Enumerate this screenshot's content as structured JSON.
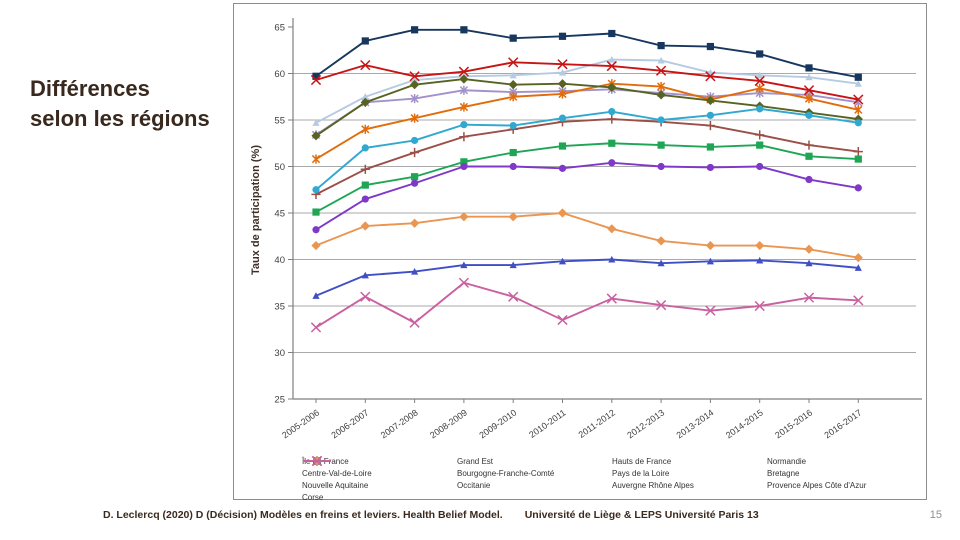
{
  "slide": {
    "title_line1": "Différences",
    "title_line2": "selon les régions",
    "footer_citation": "D. Leclercq (2020) D (Décision) Modèles en freins et leviers. Health Belief Model.",
    "footer_affiliation": "Université de Liège  &  LEPS Université Paris 13",
    "page_number": "15"
  },
  "chart_data": {
    "type": "line",
    "title": "",
    "xlabel": "",
    "ylabel": "Taux de participation (%)",
    "ylim": [
      25,
      65
    ],
    "ytick_step": 5,
    "grid": true,
    "legend_position": "bottom",
    "axis_color": "#7f7f7f",
    "grid_color": "#a9a9a9",
    "categories": [
      "2005-2006",
      "2006-2007",
      "2007-2008",
      "2008-2009",
      "2009-2010",
      "2010-2011",
      "2011-2012",
      "2012-2013",
      "2013-2014",
      "2014-2015",
      "2015-2016",
      "2016-2017"
    ],
    "series": [
      {
        "name": "Île de France",
        "color": "#414fc4",
        "marker": "triangle",
        "values": [
          36.1,
          38.3,
          38.7,
          39.4,
          39.4,
          39.8,
          40.0,
          39.6,
          39.8,
          39.9,
          39.6,
          39.1
        ]
      },
      {
        "name": "Grand Est",
        "color": "#9a4f47",
        "marker": "plus",
        "values": [
          47.0,
          49.7,
          51.5,
          53.2,
          54.0,
          54.8,
          55.1,
          54.8,
          54.4,
          53.4,
          52.3,
          51.6
        ]
      },
      {
        "name": "Hauts de France",
        "color": "#1fa655",
        "marker": "square",
        "values": [
          45.1,
          48.0,
          48.9,
          50.5,
          51.5,
          52.2,
          52.5,
          52.3,
          52.1,
          52.3,
          51.1,
          50.8
        ]
      },
      {
        "name": "Normandie",
        "color": "#a291cb",
        "marker": "asterisk",
        "values": [
          53.4,
          56.9,
          57.3,
          58.2,
          58.0,
          58.1,
          58.3,
          57.9,
          57.5,
          57.9,
          57.7,
          56.9
        ]
      },
      {
        "name": "Centre-Val-de-Loire",
        "color": "#b5cbe2",
        "marker": "triangle",
        "values": [
          54.7,
          57.5,
          59.3,
          59.7,
          59.8,
          60.1,
          61.5,
          61.4,
          60.1,
          59.8,
          59.6,
          58.9
        ]
      },
      {
        "name": "Bourgogne-Franche-Comté",
        "color": "#e36c0a",
        "marker": "asterisk",
        "values": [
          50.8,
          54.0,
          55.2,
          56.4,
          57.5,
          57.8,
          58.9,
          58.6,
          57.2,
          58.4,
          57.3,
          56.1
        ]
      },
      {
        "name": "Pays de la Loire",
        "color": "#17375e",
        "marker": "square",
        "values": [
          59.7,
          63.5,
          64.7,
          64.7,
          63.8,
          64.0,
          64.3,
          63.0,
          62.9,
          62.1,
          60.6,
          59.6
        ]
      },
      {
        "name": "Bretagne",
        "color": "#c81414",
        "marker": "x",
        "values": [
          59.3,
          60.9,
          59.7,
          60.2,
          61.2,
          61.0,
          60.8,
          60.3,
          59.7,
          59.2,
          58.2,
          57.2
        ]
      },
      {
        "name": "Nouvelle Aquitaine",
        "color": "#566321",
        "marker": "diamond",
        "values": [
          53.3,
          56.9,
          58.8,
          59.4,
          58.8,
          58.9,
          58.5,
          57.7,
          57.1,
          56.5,
          55.8,
          55.1
        ]
      },
      {
        "name": "Occitanie",
        "color": "#8038c8",
        "marker": "circle",
        "values": [
          43.2,
          46.5,
          48.2,
          50.0,
          50.0,
          49.8,
          50.4,
          50.0,
          49.9,
          50.0,
          48.6,
          47.7
        ]
      },
      {
        "name": "Auvergne Rhône Alpes",
        "color": "#30a8d0",
        "marker": "circle",
        "values": [
          47.5,
          52.0,
          52.8,
          54.5,
          54.4,
          55.2,
          55.9,
          55.0,
          55.5,
          56.2,
          55.5,
          54.7
        ]
      },
      {
        "name": "Provence Alpes Côte d'Azur",
        "color": "#ea9651",
        "marker": "diamond",
        "values": [
          41.5,
          43.6,
          43.9,
          44.6,
          44.6,
          45.0,
          43.3,
          42.0,
          41.5,
          41.5,
          41.1,
          40.2
        ]
      },
      {
        "name": "Corse",
        "color": "#c9609f",
        "marker": "x",
        "values": [
          32.7,
          36.0,
          33.2,
          37.5,
          36.0,
          33.5,
          35.8,
          35.1,
          34.5,
          35.0,
          35.9,
          35.6
        ]
      }
    ]
  }
}
